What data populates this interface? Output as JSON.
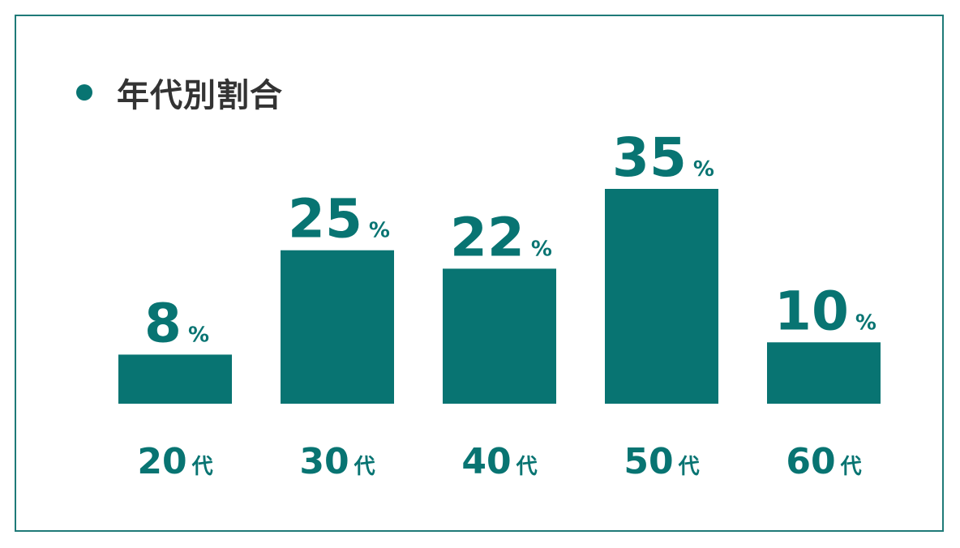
{
  "chart_data": {
    "type": "bar",
    "title": "年代別割合",
    "categories": [
      "20",
      "30",
      "40",
      "50",
      "60"
    ],
    "category_suffix": "代",
    "values": [
      8,
      25,
      22,
      35,
      10
    ],
    "value_suffix": "%",
    "ylim": [
      0,
      35
    ],
    "grid": false,
    "legend": "none"
  },
  "colors": {
    "bar": "#087472",
    "frame": "#1f7a78",
    "title": "#333333"
  },
  "icons": {
    "bullet": "bullet-dot-icon"
  }
}
